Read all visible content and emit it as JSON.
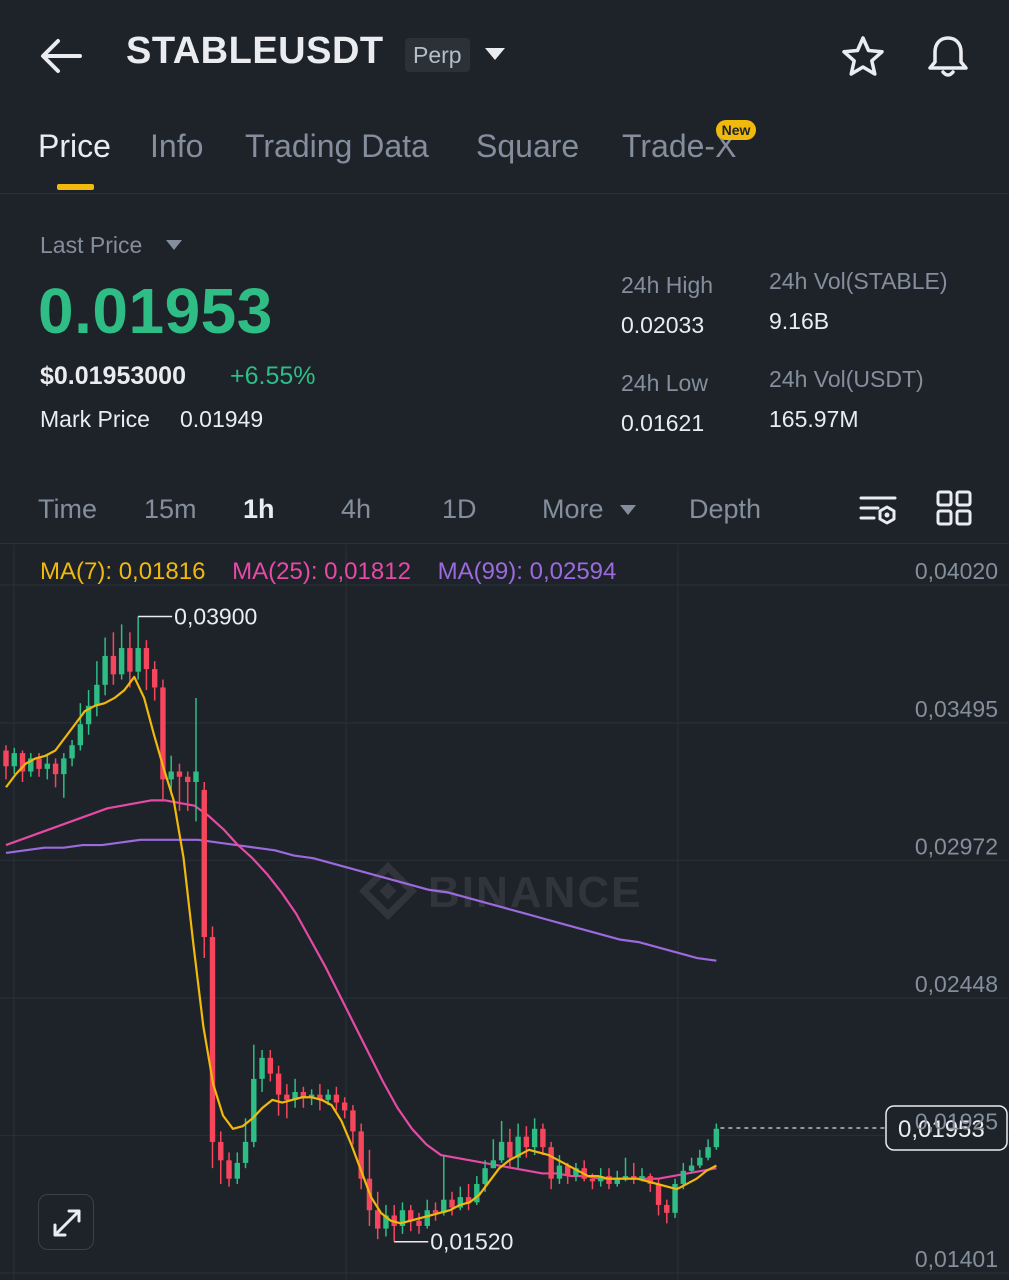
{
  "header": {
    "symbol": "STABLEUSDT",
    "contract_type": "Perp",
    "icons": [
      "back-arrow-icon",
      "chevron-down-icon",
      "star-icon",
      "bell-icon"
    ]
  },
  "tabs": [
    {
      "label": "Price",
      "active": true
    },
    {
      "label": "Info",
      "active": false
    },
    {
      "label": "Trading Data",
      "active": false
    },
    {
      "label": "Square",
      "active": false
    },
    {
      "label": "Trade-X",
      "active": false,
      "badge": "New"
    }
  ],
  "price": {
    "last_label": "Last Price",
    "last_price": "0.01953",
    "usd_price": "$0.01953000",
    "change": "+6.55%",
    "mark_label": "Mark Price",
    "mark_price": "0.01949"
  },
  "stats": {
    "high_label": "24h High",
    "high": "0.02033",
    "low_label": "24h Low",
    "low": "0.01621",
    "vol_base_label": "24h Vol(STABLE)",
    "vol_base": "9.16B",
    "vol_quote_label": "24h Vol(USDT)",
    "vol_quote": "165.97M"
  },
  "timeframes": {
    "items": [
      "Time",
      "15m",
      "1h",
      "4h",
      "1D",
      "More",
      "Depth"
    ],
    "active": "1h"
  },
  "chart_data": {
    "type": "candlestick",
    "moving_averages": [
      {
        "name": "MA(7)",
        "value": "0,01816",
        "color": "#f0b90b"
      },
      {
        "name": "MA(25)",
        "value": "0,01812",
        "color": "#e649a6"
      },
      {
        "name": "MA(99)",
        "value": "0,02594",
        "color": "#9c6ade"
      }
    ],
    "y_ticks": [
      "0,04020",
      "0,03495",
      "0,02972",
      "0,02448",
      "0,01925",
      "0,01401"
    ],
    "ylim": [
      0.01401,
      0.0402
    ],
    "high_annotation": "0,03900",
    "low_annotation": "0,01520",
    "current_price_label": "0,01953",
    "current_price": 0.01953,
    "watermark": "BINANCE",
    "up_color": "#2ebd85",
    "down_color": "#f6465d",
    "candles": [
      [
        0.0339,
        0.0333,
        0.0341,
        0.0328
      ],
      [
        0.0333,
        0.0338,
        0.034,
        0.033
      ],
      [
        0.0338,
        0.0331,
        0.0339,
        0.0327
      ],
      [
        0.0331,
        0.0336,
        0.0338,
        0.0329
      ],
      [
        0.0336,
        0.0332,
        0.0338,
        0.0329
      ],
      [
        0.0332,
        0.0334,
        0.0337,
        0.0328
      ],
      [
        0.0334,
        0.033,
        0.0336,
        0.0325
      ],
      [
        0.033,
        0.0336,
        0.0338,
        0.0321
      ],
      [
        0.0336,
        0.0341,
        0.0343,
        0.0333
      ],
      [
        0.0341,
        0.0349,
        0.0357,
        0.0339
      ],
      [
        0.0349,
        0.0356,
        0.0362,
        0.0345
      ],
      [
        0.0356,
        0.0364,
        0.0373,
        0.0352
      ],
      [
        0.0364,
        0.0375,
        0.0382,
        0.036
      ],
      [
        0.0375,
        0.0368,
        0.0384,
        0.0364
      ],
      [
        0.0368,
        0.0378,
        0.0387,
        0.0366
      ],
      [
        0.0378,
        0.0369,
        0.0384,
        0.0363
      ],
      [
        0.0369,
        0.0378,
        0.039,
        0.0366
      ],
      [
        0.0378,
        0.037,
        0.0381,
        0.0362
      ],
      [
        0.037,
        0.0363,
        0.0373,
        0.0358
      ],
      [
        0.0363,
        0.0328,
        0.0366,
        0.032
      ],
      [
        0.0328,
        0.0331,
        0.0337,
        0.0322
      ],
      [
        0.0331,
        0.0329,
        0.0334,
        0.0316
      ],
      [
        0.0329,
        0.0327,
        0.0331,
        0.0316
      ],
      [
        0.0327,
        0.0331,
        0.0359,
        0.0312
      ],
      [
        0.0324,
        0.0268,
        0.0327,
        0.026
      ],
      [
        0.0268,
        0.019,
        0.0272,
        0.018
      ],
      [
        0.019,
        0.0183,
        0.0194,
        0.0174
      ],
      [
        0.0183,
        0.0176,
        0.0186,
        0.0173
      ],
      [
        0.0176,
        0.0182,
        0.0186,
        0.0174
      ],
      [
        0.0182,
        0.019,
        0.0199,
        0.018
      ],
      [
        0.019,
        0.0214,
        0.0227,
        0.0188
      ],
      [
        0.0214,
        0.0222,
        0.0225,
        0.0209
      ],
      [
        0.0222,
        0.0216,
        0.0225,
        0.0213
      ],
      [
        0.0216,
        0.0208,
        0.0219,
        0.02
      ],
      [
        0.0208,
        0.0206,
        0.0212,
        0.0199
      ],
      [
        0.0206,
        0.0209,
        0.0214,
        0.0203
      ],
      [
        0.0209,
        0.0207,
        0.0211,
        0.0203
      ],
      [
        0.0207,
        0.0208,
        0.021,
        0.0204
      ],
      [
        0.0208,
        0.0206,
        0.0212,
        0.0202
      ],
      [
        0.0206,
        0.0208,
        0.021,
        0.0204
      ],
      [
        0.0208,
        0.0205,
        0.0211,
        0.0202
      ],
      [
        0.0205,
        0.0202,
        0.0207,
        0.0199
      ],
      [
        0.0202,
        0.0194,
        0.0204,
        0.0189
      ],
      [
        0.0194,
        0.0176,
        0.0197,
        0.0172
      ],
      [
        0.0176,
        0.0164,
        0.0187,
        0.0158
      ],
      [
        0.0164,
        0.0157,
        0.0171,
        0.0153
      ],
      [
        0.0157,
        0.0162,
        0.0166,
        0.0154
      ],
      [
        0.0162,
        0.0158,
        0.0166,
        0.0152
      ],
      [
        0.0158,
        0.0164,
        0.0167,
        0.0155
      ],
      [
        0.0164,
        0.016,
        0.0166,
        0.0156
      ],
      [
        0.016,
        0.0158,
        0.0163,
        0.0155
      ],
      [
        0.0158,
        0.0164,
        0.0168,
        0.0157
      ],
      [
        0.0164,
        0.0163,
        0.0167,
        0.016
      ],
      [
        0.0163,
        0.0168,
        0.0185,
        0.0162
      ],
      [
        0.0168,
        0.0165,
        0.0171,
        0.0162
      ],
      [
        0.0165,
        0.0169,
        0.0173,
        0.0164
      ],
      [
        0.0169,
        0.0167,
        0.0174,
        0.0164
      ],
      [
        0.0167,
        0.0174,
        0.0177,
        0.0166
      ],
      [
        0.0174,
        0.018,
        0.0183,
        0.0171
      ],
      [
        0.018,
        0.0183,
        0.0191,
        0.018
      ],
      [
        0.0183,
        0.019,
        0.0198,
        0.0182
      ],
      [
        0.019,
        0.0184,
        0.0195,
        0.018
      ],
      [
        0.0184,
        0.0192,
        0.0197,
        0.018
      ],
      [
        0.0192,
        0.0188,
        0.0196,
        0.0184
      ],
      [
        0.0188,
        0.0195,
        0.0199,
        0.0185
      ],
      [
        0.0195,
        0.0188,
        0.0197,
        0.0185
      ],
      [
        0.0188,
        0.0176,
        0.019,
        0.0172
      ],
      [
        0.0176,
        0.0181,
        0.0185,
        0.0174
      ],
      [
        0.0181,
        0.0177,
        0.0182,
        0.0174
      ],
      [
        0.0177,
        0.018,
        0.0182,
        0.0175
      ],
      [
        0.018,
        0.0176,
        0.0183,
        0.0175
      ],
      [
        0.0176,
        0.0175,
        0.0178,
        0.0172
      ],
      [
        0.0175,
        0.0177,
        0.018,
        0.0173
      ],
      [
        0.0177,
        0.0174,
        0.018,
        0.0172
      ],
      [
        0.0174,
        0.0176,
        0.0179,
        0.0173
      ],
      [
        0.0176,
        0.0177,
        0.0184,
        0.0175
      ],
      [
        0.0177,
        0.0176,
        0.0182,
        0.0174
      ],
      [
        0.0176,
        0.0177,
        0.018,
        0.0175
      ],
      [
        0.0177,
        0.0174,
        0.0178,
        0.0171
      ],
      [
        0.0174,
        0.0166,
        0.0176,
        0.0162
      ],
      [
        0.0166,
        0.0163,
        0.0168,
        0.0159
      ],
      [
        0.0163,
        0.0174,
        0.0176,
        0.0161
      ],
      [
        0.0174,
        0.0179,
        0.0182,
        0.0172
      ],
      [
        0.0179,
        0.0181,
        0.0184,
        0.0178
      ],
      [
        0.0181,
        0.0184,
        0.0187,
        0.018
      ],
      [
        0.0184,
        0.0188,
        0.0191,
        0.0183
      ],
      [
        0.0188,
        0.0195,
        0.0197,
        0.0187
      ]
    ],
    "ma7": [
      0.0325,
      0.033,
      0.0334,
      0.0336,
      0.0337,
      0.0339,
      0.0344,
      0.0349,
      0.0354,
      0.0356,
      0.0357,
      0.0359,
      0.0362,
      0.0367,
      0.0359,
      0.0345,
      0.0332,
      0.032,
      0.0298,
      0.0265,
      0.0234,
      0.0212,
      0.02,
      0.0195,
      0.0196,
      0.0199,
      0.0203,
      0.0206,
      0.0205,
      0.0206,
      0.0207,
      0.0207,
      0.0206,
      0.0204,
      0.0198,
      0.0189,
      0.0179,
      0.0169,
      0.0163,
      0.016,
      0.0159,
      0.016,
      0.0161,
      0.0162,
      0.0163,
      0.0164,
      0.0166,
      0.0167,
      0.017,
      0.0175,
      0.018,
      0.0183,
      0.0185,
      0.0187,
      0.0186,
      0.0185,
      0.0183,
      0.0181,
      0.0179,
      0.0177,
      0.0177,
      0.0176,
      0.0176,
      0.0176,
      0.0176,
      0.0175,
      0.0174,
      0.0173,
      0.0172,
      0.0174,
      0.0176,
      0.0179,
      0.0181
    ],
    "ma25": [
      0.0303,
      0.0305,
      0.0307,
      0.0309,
      0.0311,
      0.0313,
      0.0315,
      0.0317,
      0.0318,
      0.0319,
      0.032,
      0.032,
      0.0319,
      0.0318,
      0.0314,
      0.0309,
      0.0303,
      0.0298,
      0.0292,
      0.0285,
      0.0277,
      0.0267,
      0.0257,
      0.0246,
      0.0235,
      0.0224,
      0.0213,
      0.0203,
      0.0195,
      0.0189,
      0.0185,
      0.0184,
      0.0183,
      0.0182,
      0.0181,
      0.018,
      0.0179,
      0.0178,
      0.0178,
      0.0177,
      0.0177,
      0.0176,
      0.0176,
      0.0176,
      0.0176,
      0.0176,
      0.0177,
      0.0178,
      0.0179,
      0.018
    ],
    "ma99": [
      0.03,
      0.0301,
      0.0302,
      0.0302,
      0.0303,
      0.0303,
      0.0304,
      0.0305,
      0.0305,
      0.0305,
      0.0305,
      0.0304,
      0.0303,
      0.0302,
      0.0301,
      0.0299,
      0.0298,
      0.0296,
      0.0294,
      0.0292,
      0.029,
      0.0288,
      0.0286,
      0.0285,
      0.0283,
      0.0281,
      0.0279,
      0.0277,
      0.0275,
      0.0273,
      0.0271,
      0.0269,
      0.0267,
      0.0266,
      0.0264,
      0.0262,
      0.026,
      0.0259
    ]
  }
}
